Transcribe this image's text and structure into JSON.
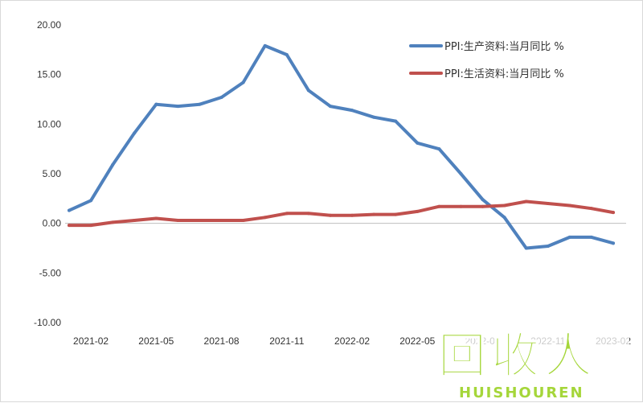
{
  "chart_data": {
    "type": "line",
    "title": "",
    "xlabel": "",
    "ylabel": "",
    "ylim": [
      -10,
      20
    ],
    "y_ticks": [
      "20.00",
      "15.00",
      "10.00",
      "5.00",
      "0.00",
      "-5.00",
      "-10.00"
    ],
    "y_tick_values": [
      20,
      15,
      10,
      5,
      0,
      -5,
      -10
    ],
    "x_ticks": [
      "2021-02",
      "2021-05",
      "2021-08",
      "2021-11",
      "2022-02",
      "2022-05",
      "2022-08",
      "2022-11",
      "2023-02"
    ],
    "x": [
      "2021-01",
      "2021-02",
      "2021-03",
      "2021-04",
      "2021-05",
      "2021-06",
      "2021-07",
      "2021-08",
      "2021-09",
      "2021-10",
      "2021-11",
      "2021-12",
      "2022-01",
      "2022-02",
      "2022-03",
      "2022-04",
      "2022-05",
      "2022-06",
      "2022-07",
      "2022-08",
      "2022-09",
      "2022-10",
      "2022-11",
      "2022-12",
      "2023-01",
      "2023-02"
    ],
    "grid": false,
    "legend_position": "top-right",
    "series": [
      {
        "name": "PPI:生产资料:当月同比 %",
        "color": "#4f81bd",
        "values": [
          1.3,
          2.3,
          5.9,
          9.1,
          12.0,
          11.8,
          12.0,
          12.7,
          14.2,
          17.9,
          17.0,
          13.4,
          11.8,
          11.4,
          10.7,
          10.3,
          8.1,
          7.5,
          5.0,
          2.4,
          0.6,
          -2.5,
          -2.3,
          -1.4,
          -1.4,
          -2.0
        ]
      },
      {
        "name": "PPI:生活资料:当月同比 %",
        "color": "#c0504d",
        "values": [
          -0.2,
          -0.2,
          0.1,
          0.3,
          0.5,
          0.3,
          0.3,
          0.3,
          0.3,
          0.6,
          1.0,
          1.0,
          0.8,
          0.8,
          0.9,
          0.9,
          1.2,
          1.7,
          1.7,
          1.7,
          1.8,
          2.2,
          2.0,
          1.8,
          1.5,
          1.1
        ]
      }
    ]
  },
  "watermark": {
    "logo_text": "回收人",
    "brand_text": "HUISHOUREN",
    "color": "#a5d63a"
  }
}
